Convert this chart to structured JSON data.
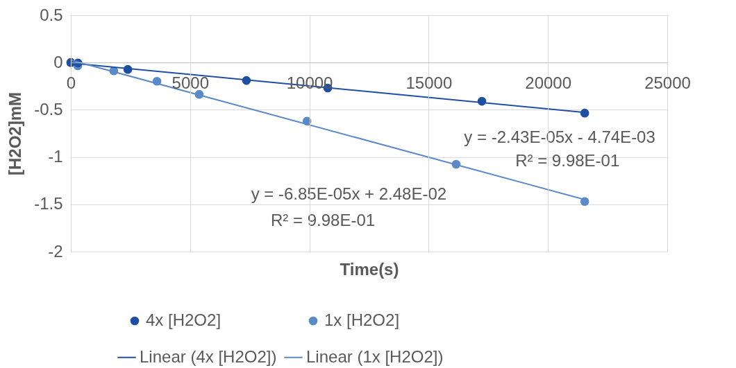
{
  "chart_data": {
    "type": "scatter",
    "xlabel": "Time(s)",
    "ylabel": "[H2O2]mM",
    "xlim": [
      0,
      25000
    ],
    "xticks": [
      0,
      5000,
      10000,
      15000,
      20000,
      25000
    ],
    "ylim": [
      -2,
      0.5
    ],
    "yticks": [
      -2,
      -1.5,
      -1,
      -0.5,
      0,
      0.5
    ],
    "grid": true,
    "legend": "bottom",
    "marker": "circle",
    "series": [
      {
        "name": "4x [H2O2]",
        "type": "scatter",
        "color": "#1f4fa3",
        "x": [
          0,
          300,
          2390,
          7360,
          10770,
          17230,
          21540
        ],
        "values": [
          0,
          -0.005,
          -0.073,
          -0.19,
          -0.27,
          -0.41,
          -0.535
        ]
      },
      {
        "name": "1x [H2O2]",
        "type": "scatter",
        "color": "#5b8ac8",
        "x": [
          0,
          290,
          1800,
          3610,
          5380,
          9900,
          16150,
          21540
        ],
        "values": [
          0,
          -0.035,
          -0.088,
          -0.198,
          -0.337,
          -0.62,
          -1.076,
          -1.47
        ]
      },
      {
        "name": "Linear (4x [H2O2])",
        "type": "line",
        "line_style": "solid",
        "marker": "none",
        "color": "#1f4fa3",
        "x": [
          0,
          21540
        ],
        "values": [
          -0.005,
          -0.528
        ]
      },
      {
        "name": "Linear (1x [H2O2])",
        "type": "line",
        "line_style": "solid",
        "marker": "none",
        "color": "#5b8ac8",
        "x": [
          0,
          21540
        ],
        "values": [
          0.025,
          -1.45
        ]
      }
    ],
    "annotations": [
      "y = -2.43E-05x - 4.74E-03",
      "R² = 9.98E-01",
      "y = -6.85E-05x + 2.48E-02",
      "R² = 9.98E-01"
    ]
  }
}
